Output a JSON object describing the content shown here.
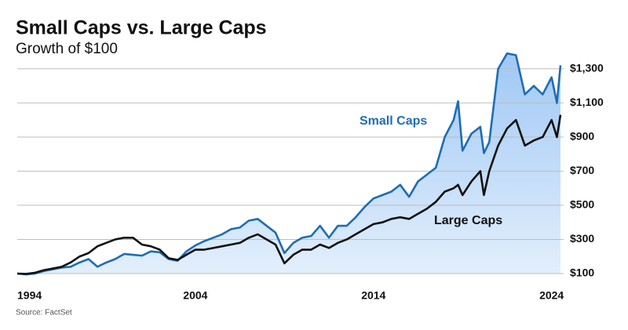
{
  "chart_data": {
    "type": "line",
    "title": "Small Caps vs. Large Caps",
    "subtitle": "Growth of $100",
    "source": "Source: FactSet",
    "x": [
      1994,
      1994.5,
      1995,
      1995.5,
      1996,
      1996.5,
      1997,
      1997.5,
      1998,
      1998.5,
      1999,
      1999.5,
      2000,
      2000.5,
      2001,
      2001.5,
      2002,
      2002.5,
      2003,
      2003.5,
      2004,
      2004.5,
      2005,
      2005.5,
      2006,
      2006.5,
      2007,
      2007.5,
      2008,
      2008.5,
      2009,
      2009.5,
      2010,
      2010.5,
      2011,
      2011.5,
      2012,
      2012.5,
      2013,
      2013.5,
      2014,
      2014.5,
      2015,
      2015.5,
      2016,
      2016.5,
      2017,
      2017.5,
      2018,
      2018.5,
      2018.75,
      2019,
      2019.5,
      2020,
      2020.2,
      2020.5,
      2021,
      2021.5,
      2022,
      2022.5,
      2023,
      2023.5,
      2024,
      2024.3,
      2024.5
    ],
    "series": [
      {
        "name": "Small Caps",
        "color": "#1f6db3",
        "fill": true,
        "values": [
          100,
          95,
          100,
          115,
          125,
          135,
          140,
          165,
          185,
          140,
          165,
          185,
          215,
          210,
          205,
          230,
          225,
          185,
          175,
          230,
          265,
          290,
          310,
          330,
          360,
          370,
          410,
          420,
          380,
          340,
          220,
          280,
          310,
          320,
          380,
          310,
          380,
          380,
          430,
          490,
          540,
          560,
          580,
          620,
          550,
          640,
          680,
          720,
          900,
          1000,
          1110,
          820,
          920,
          960,
          806,
          870,
          1300,
          1390,
          1380,
          1150,
          1200,
          1150,
          1250,
          1100,
          1320
        ]
      },
      {
        "name": "Large Caps",
        "color": "#111111",
        "values": [
          100,
          98,
          105,
          120,
          130,
          140,
          165,
          200,
          220,
          260,
          280,
          300,
          310,
          310,
          270,
          260,
          240,
          190,
          180,
          210,
          240,
          240,
          250,
          260,
          270,
          280,
          310,
          330,
          300,
          270,
          160,
          210,
          240,
          240,
          270,
          250,
          280,
          300,
          330,
          360,
          390,
          400,
          420,
          430,
          420,
          450,
          480,
          520,
          580,
          600,
          620,
          560,
          640,
          700,
          560,
          700,
          850,
          950,
          1000,
          850,
          880,
          900,
          1000,
          900,
          1030
        ]
      }
    ],
    "xlim": [
      1994,
      2024.5
    ],
    "xticks": [
      1994,
      2004,
      2014,
      2024
    ],
    "ylim": [
      100,
      1400
    ],
    "yticks": [
      {
        "value": 100,
        "label": "$100"
      },
      {
        "value": 300,
        "label": "$300"
      },
      {
        "value": 500,
        "label": "$500"
      },
      {
        "value": 700,
        "label": "$700"
      },
      {
        "value": 900,
        "label": "$900"
      },
      {
        "value": 1100,
        "label": "$1,100"
      },
      {
        "value": 1300,
        "label": "$1,300"
      }
    ],
    "grid": true
  }
}
